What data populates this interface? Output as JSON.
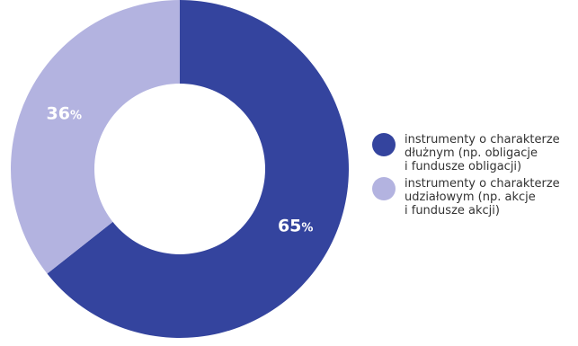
{
  "chart_data": {
    "type": "pie",
    "variant": "donut",
    "slices": [
      {
        "label": "instrumenty o charakterze\ndłużnym (np. obligacje\ni fundusze obligacji)",
        "value": 65,
        "value_label": "65",
        "unit": "%",
        "color": "#34449E"
      },
      {
        "label": "instrumenty o charakterze\nudziałowym (np. akcje\ni fundusze akcji)",
        "value": 36,
        "value_label": "36",
        "unit": "%",
        "color": "#B3B3E0"
      }
    ],
    "legend_position": "right",
    "start": "top",
    "direction": "clockwise"
  }
}
